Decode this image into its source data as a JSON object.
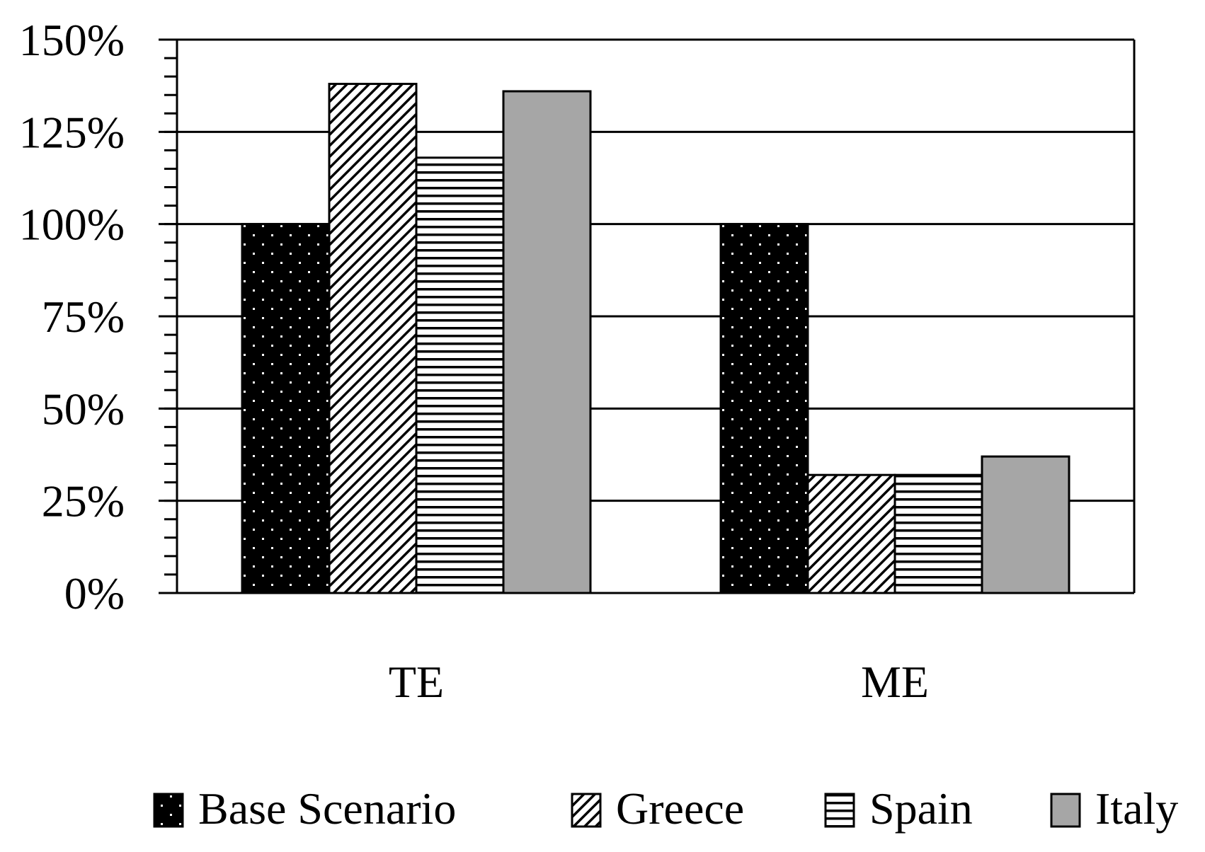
{
  "chart_data": {
    "type": "bar",
    "categories": [
      "TE",
      "ME"
    ],
    "series": [
      {
        "name": "Base Scenario",
        "values": [
          100,
          100
        ],
        "pattern": "dots",
        "color": "#000000"
      },
      {
        "name": "Greece",
        "values": [
          138,
          32
        ],
        "pattern": "diagonal",
        "color": "#ffffff"
      },
      {
        "name": "Spain",
        "values": [
          118,
          32
        ],
        "pattern": "horizontal",
        "color": "#ffffff"
      },
      {
        "name": "Italy",
        "values": [
          136,
          37
        ],
        "pattern": "solid",
        "color": "#a6a6a6"
      }
    ],
    "ylim": [
      0,
      150
    ],
    "yticks": [
      0,
      25,
      50,
      75,
      100,
      125,
      150
    ],
    "ytick_labels": [
      "0%",
      "25%",
      "50%",
      "75%",
      "100%",
      "125%",
      "150%"
    ],
    "title": "",
    "xlabel": "",
    "ylabel": "",
    "grid": true,
    "legend_position": "bottom"
  }
}
